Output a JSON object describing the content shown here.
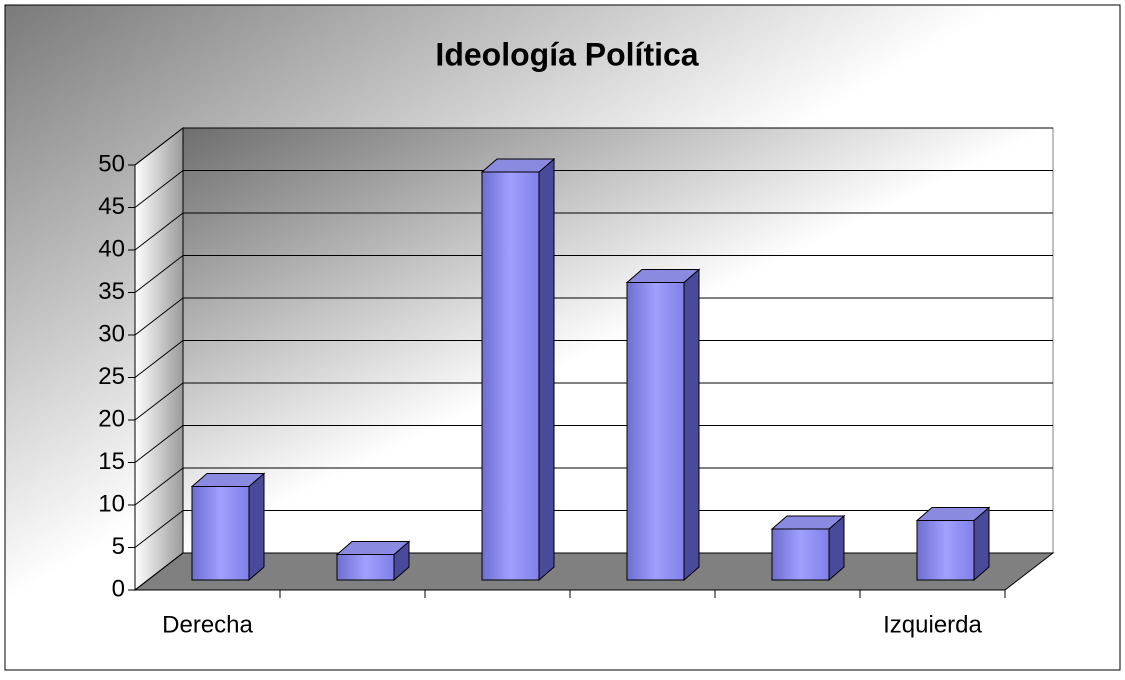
{
  "chart_data": {
    "type": "bar3d",
    "title": "Ideología Política",
    "categories": [
      "Derecha",
      null,
      null,
      null,
      null,
      "Izquierda"
    ],
    "values": [
      11,
      3,
      48,
      35,
      6,
      7
    ],
    "color": "#9999ff",
    "ylim": [
      0,
      50
    ],
    "yticks": [
      0,
      5,
      10,
      15,
      20,
      25,
      30,
      35,
      40,
      45,
      50
    ],
    "grid": true
  }
}
